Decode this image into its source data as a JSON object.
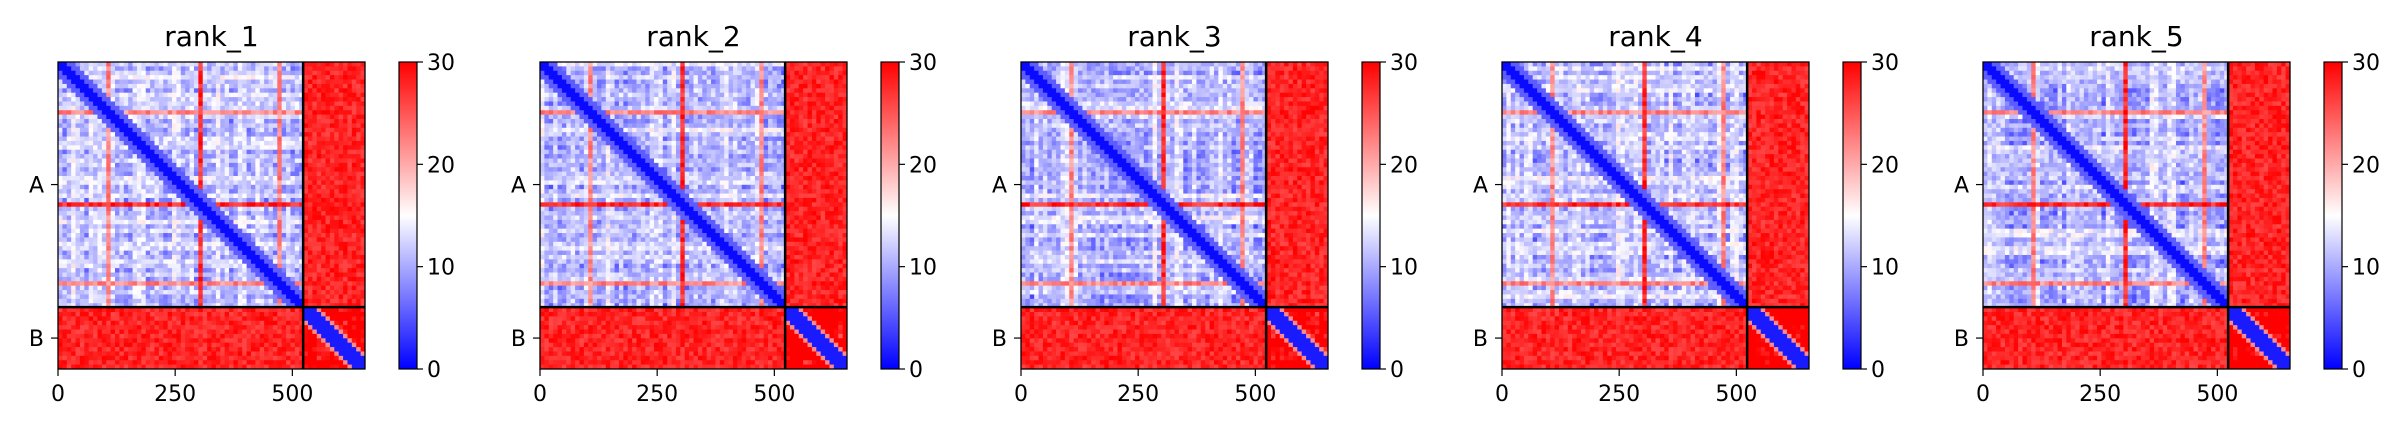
{
  "chart_data": [
    {
      "type": "heatmap",
      "title": "rank_1",
      "x_ticks": [
        0,
        250,
        500
      ],
      "x_lim": [
        0,
        655
      ],
      "chain_labels": [
        "A",
        "B"
      ],
      "chain_lengths": [
        523,
        132
      ],
      "colorbar": {
        "ticks": [
          0,
          10,
          20,
          30
        ],
        "range": [
          0,
          30
        ],
        "colors": [
          "#0000ff",
          "#ffffff",
          "#ff0000"
        ]
      }
    },
    {
      "type": "heatmap",
      "title": "rank_2",
      "x_ticks": [
        0,
        250,
        500
      ],
      "x_lim": [
        0,
        655
      ],
      "chain_labels": [
        "A",
        "B"
      ],
      "chain_lengths": [
        523,
        132
      ],
      "colorbar": {
        "ticks": [
          0,
          10,
          20,
          30
        ],
        "range": [
          0,
          30
        ],
        "colors": [
          "#0000ff",
          "#ffffff",
          "#ff0000"
        ]
      }
    },
    {
      "type": "heatmap",
      "title": "rank_3",
      "x_ticks": [
        0,
        250,
        500
      ],
      "x_lim": [
        0,
        655
      ],
      "chain_labels": [
        "A",
        "B"
      ],
      "chain_lengths": [
        523,
        132
      ],
      "colorbar": {
        "ticks": [
          0,
          10,
          20,
          30
        ],
        "range": [
          0,
          30
        ],
        "colors": [
          "#0000ff",
          "#ffffff",
          "#ff0000"
        ]
      }
    },
    {
      "type": "heatmap",
      "title": "rank_4",
      "x_ticks": [
        0,
        250,
        500
      ],
      "x_lim": [
        0,
        655
      ],
      "chain_labels": [
        "A",
        "B"
      ],
      "chain_lengths": [
        523,
        132
      ],
      "colorbar": {
        "ticks": [
          0,
          10,
          20,
          30
        ],
        "range": [
          0,
          30
        ],
        "colors": [
          "#0000ff",
          "#ffffff",
          "#ff0000"
        ]
      }
    },
    {
      "type": "heatmap",
      "title": "rank_5",
      "x_ticks": [
        0,
        250,
        500
      ],
      "x_lim": [
        0,
        655
      ],
      "chain_labels": [
        "A",
        "B"
      ],
      "chain_lengths": [
        523,
        132
      ],
      "colorbar": {
        "ticks": [
          0,
          10,
          20,
          30
        ],
        "range": [
          0,
          30
        ],
        "colors": [
          "#0000ff",
          "#ffffff",
          "#ff0000"
        ]
      }
    }
  ]
}
